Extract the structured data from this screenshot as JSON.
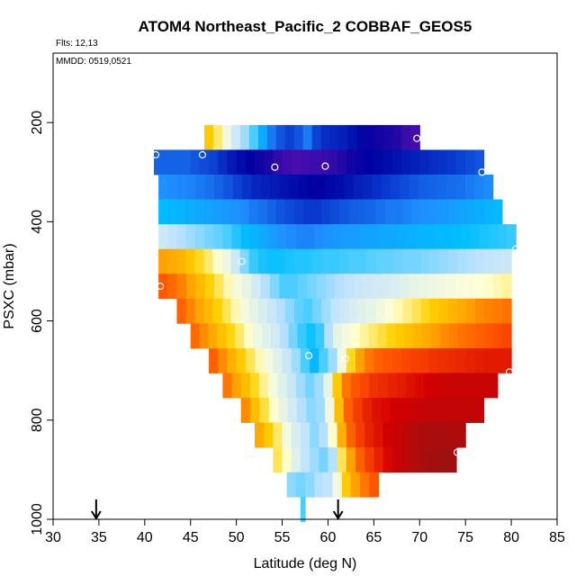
{
  "chart_data": {
    "type": "heatmap",
    "title": "ATOM4 Northeast_Pacific_2 COBBAF_GEOS5",
    "flights_note": "Flts: 12,13",
    "dates_note": "MMDD: 0519,0521",
    "xlabel": "Latitude (deg N)",
    "ylabel": "PSXC (mbar)",
    "xlim": [
      30,
      85
    ],
    "ylim": [
      1000,
      0
    ],
    "x_ticks": [
      "30",
      "35",
      "40",
      "45",
      "50",
      "55",
      "60",
      "65",
      "70",
      "75",
      "80",
      "85"
    ],
    "x_tick_values": [
      30,
      35,
      40,
      45,
      50,
      55,
      60,
      65,
      70,
      75,
      80,
      85
    ],
    "y_ticks": [
      "1000",
      "800",
      "600",
      "400",
      "200"
    ],
    "y_tick_values": [
      1000,
      800,
      600,
      400,
      200
    ],
    "grid": false,
    "colormap": [
      "#5010b0",
      "#0000a0",
      "#0a3ad0",
      "#1f8fff",
      "#00bfff",
      "#bfe2ff",
      "#ffffd6",
      "#ffd200",
      "#ffa000",
      "#ff5000",
      "#d40000",
      "#a01010"
    ],
    "value_range": [
      -1,
      1
    ],
    "rows": [
      {
        "p": 230,
        "x_start": 46.5,
        "x_end": 70,
        "values": [
          0.3,
          0.18,
          0.05,
          -0.05,
          -0.12,
          -0.2,
          -0.35,
          -0.5,
          -0.58,
          -0.62,
          -0.58,
          -0.5,
          -0.62,
          -0.68,
          -0.7,
          -0.72,
          -0.76,
          -0.8,
          -0.84,
          -0.86,
          -0.88,
          -0.9,
          -0.95,
          -0.97
        ]
      },
      {
        "p": 280,
        "x_start": 41,
        "x_end": 77,
        "values": [
          -0.55,
          -0.55,
          -0.55,
          -0.55,
          -0.58,
          -0.6,
          -0.62,
          -0.68,
          -0.74,
          -0.78,
          -0.82,
          -0.85,
          -0.88,
          -0.93,
          -0.96,
          -0.98,
          -0.97,
          -0.96,
          -0.95,
          -0.93,
          -0.9,
          -0.86,
          -0.84,
          -0.82,
          -0.8,
          -0.78,
          -0.76,
          -0.74,
          -0.72,
          -0.7,
          -0.68,
          -0.66,
          -0.64,
          -0.62,
          -0.6,
          -0.58
        ]
      },
      {
        "p": 330,
        "x_start": 41.5,
        "x_end": 78,
        "values": [
          -0.45,
          -0.46,
          -0.47,
          -0.48,
          -0.5,
          -0.52,
          -0.55,
          -0.58,
          -0.62,
          -0.66,
          -0.7,
          -0.72,
          -0.74,
          -0.76,
          -0.78,
          -0.8,
          -0.82,
          -0.82,
          -0.8,
          -0.78,
          -0.75,
          -0.72,
          -0.7,
          -0.67,
          -0.64,
          -0.62,
          -0.6,
          -0.58,
          -0.56,
          -0.55,
          -0.54,
          -0.53,
          -0.52,
          -0.5,
          -0.48,
          -0.46
        ]
      },
      {
        "p": 380,
        "x_start": 41.5,
        "x_end": 79,
        "values": [
          -0.28,
          -0.3,
          -0.32,
          -0.34,
          -0.36,
          -0.38,
          -0.4,
          -0.42,
          -0.44,
          -0.46,
          -0.5,
          -0.52,
          -0.55,
          -0.58,
          -0.6,
          -0.62,
          -0.64,
          -0.64,
          -0.62,
          -0.6,
          -0.58,
          -0.56,
          -0.55,
          -0.54,
          -0.52,
          -0.5,
          -0.5,
          -0.48,
          -0.46,
          -0.45,
          -0.44,
          -0.42,
          -0.4,
          -0.38,
          -0.36,
          -0.34,
          -0.32,
          -0.3
        ]
      },
      {
        "p": 430,
        "x_start": 41.5,
        "x_end": 80.5,
        "values": [
          -0.05,
          -0.08,
          -0.1,
          -0.12,
          -0.14,
          -0.16,
          -0.18,
          -0.2,
          -0.24,
          -0.28,
          -0.32,
          -0.36,
          -0.4,
          -0.44,
          -0.46,
          -0.48,
          -0.48,
          -0.46,
          -0.44,
          -0.42,
          -0.4,
          -0.4,
          -0.38,
          -0.38,
          -0.36,
          -0.36,
          -0.34,
          -0.33,
          -0.32,
          -0.31,
          -0.3,
          -0.29,
          -0.28,
          -0.27,
          -0.26,
          -0.25,
          -0.24,
          -0.23,
          -0.22
        ]
      },
      {
        "p": 480,
        "x_start": 41.5,
        "x_end": 80,
        "values": [
          0.45,
          0.42,
          0.38,
          0.32,
          0.25,
          0.18,
          0.1,
          0.04,
          -0.05,
          -0.15,
          -0.22,
          -0.25,
          -0.26,
          -0.26,
          -0.25,
          -0.24,
          -0.24,
          -0.23,
          -0.22,
          -0.22,
          -0.21,
          -0.2,
          -0.2,
          -0.19,
          -0.18,
          -0.18,
          -0.17,
          -0.16,
          -0.16,
          -0.15,
          -0.14,
          -0.13,
          -0.12,
          -0.11,
          -0.1,
          -0.09,
          -0.08,
          -0.07,
          -0.06
        ]
      },
      {
        "p": 530,
        "x_start": 41.5,
        "x_end": 80,
        "values": [
          0.62,
          0.58,
          0.52,
          0.44,
          0.36,
          0.28,
          0.2,
          0.12,
          0.06,
          0.02,
          -0.04,
          -0.1,
          -0.15,
          -0.2,
          -0.2,
          -0.18,
          -0.16,
          -0.14,
          -0.12,
          -0.1,
          -0.08,
          -0.06,
          -0.05,
          -0.04,
          -0.03,
          -0.02,
          0,
          0.02,
          0.03,
          0.04,
          0.05,
          0.06,
          0.07,
          0.08,
          0.09,
          0.1,
          0.12,
          0.14
        ]
      },
      {
        "p": 580,
        "x_start": 43.5,
        "x_end": 80,
        "values": [
          0.6,
          0.52,
          0.44,
          0.36,
          0.28,
          0.2,
          0.12,
          0.06,
          0.02,
          -0.02,
          -0.06,
          -0.1,
          -0.14,
          -0.18,
          -0.2,
          -0.16,
          -0.12,
          -0.08,
          -0.05,
          -0.02,
          0,
          0.02,
          0.05,
          0.08,
          0.12,
          0.16,
          0.2,
          0.25,
          0.3,
          0.34,
          0.38,
          0.42,
          0.46,
          0.5,
          0.52,
          0.54,
          0.56
        ]
      },
      {
        "p": 630,
        "x_start": 45,
        "x_end": 80,
        "values": [
          0.58,
          0.5,
          0.42,
          0.34,
          0.26,
          0.18,
          0.1,
          0.04,
          0,
          -0.04,
          -0.1,
          -0.16,
          -0.22,
          -0.26,
          -0.22,
          -0.1,
          0.02,
          0.06,
          0.1,
          0.14,
          0.18,
          0.22,
          0.26,
          0.3,
          0.34,
          0.38,
          0.42,
          0.46,
          0.5,
          0.53,
          0.56,
          0.58,
          0.6,
          0.62,
          0.64,
          0.66
        ]
      },
      {
        "p": 680,
        "x_start": 47,
        "x_end": 80,
        "values": [
          0.6,
          0.5,
          0.4,
          0.3,
          0.2,
          0.12,
          0.06,
          0,
          -0.06,
          -0.12,
          -0.2,
          -0.3,
          -0.2,
          -0.12,
          0.05,
          0.25,
          0.45,
          0.55,
          0.6,
          0.62,
          0.64,
          0.66,
          0.67,
          0.68,
          0.7,
          0.71,
          0.72,
          0.73,
          0.74,
          0.75,
          0.76,
          0.76,
          0.76
        ]
      },
      {
        "p": 730,
        "x_start": 48.5,
        "x_end": 78.5,
        "values": [
          0.55,
          0.45,
          0.35,
          0.25,
          0.15,
          0.06,
          0,
          -0.06,
          -0.12,
          -0.16,
          -0.12,
          0.02,
          0.3,
          0.55,
          0.62,
          0.66,
          0.7,
          0.72,
          0.74,
          0.76,
          0.78,
          0.8,
          0.82,
          0.84,
          0.85,
          0.86,
          0.86,
          0.86,
          0.86,
          0.86
        ]
      },
      {
        "p": 780,
        "x_start": 50.5,
        "x_end": 77,
        "values": [
          0.5,
          0.35,
          0.22,
          0.1,
          0.02,
          -0.04,
          -0.1,
          -0.14,
          -0.12,
          0.05,
          0.35,
          0.6,
          0.68,
          0.74,
          0.78,
          0.8,
          0.82,
          0.84,
          0.86,
          0.87,
          0.88,
          0.88,
          0.88,
          0.88,
          0.88,
          0.88
        ]
      },
      {
        "p": 830,
        "x_start": 52,
        "x_end": 75,
        "values": [
          0.42,
          0.3,
          0.18,
          0.06,
          -0.02,
          -0.08,
          -0.14,
          -0.1,
          0.1,
          0.4,
          0.6,
          0.68,
          0.74,
          0.78,
          0.82,
          0.86,
          0.9,
          0.94,
          0.96,
          0.97,
          0.97,
          0.96,
          0.95
        ]
      },
      {
        "p": 880,
        "x_start": 54,
        "x_end": 74,
        "values": [
          0.2,
          0.1,
          0,
          -0.08,
          -0.12,
          -0.16,
          -0.1,
          0.2,
          0.45,
          0.6,
          0.68,
          0.74,
          0.8,
          0.86,
          0.9,
          0.94,
          0.97,
          0.99,
          1.0,
          1.0
        ]
      },
      {
        "p": 930,
        "x_start": 55.5,
        "x_end": 65.5,
        "values": [
          -0.14,
          -0.16,
          -0.14,
          -0.1,
          -0.08,
          0.05,
          0.3,
          0.45,
          0.55,
          0.62
        ]
      },
      {
        "p": 980,
        "x_start": 57,
        "x_end": 57.5,
        "values": [
          -0.2
        ]
      }
    ],
    "markers": [
      {
        "x": 69.7,
        "y": 232
      },
      {
        "x": 41.2,
        "y": 265
      },
      {
        "x": 46.3,
        "y": 265
      },
      {
        "x": 54.2,
        "y": 290
      },
      {
        "x": 59.7,
        "y": 288
      },
      {
        "x": 76.8,
        "y": 300
      },
      {
        "x": 80.5,
        "y": 455
      },
      {
        "x": 50.6,
        "y": 480
      },
      {
        "x": 41.7,
        "y": 530
      },
      {
        "x": 57.9,
        "y": 670
      },
      {
        "x": 61.9,
        "y": 676
      },
      {
        "x": 79.8,
        "y": 703
      },
      {
        "x": 74.1,
        "y": 865
      }
    ],
    "arrows": [
      {
        "x": 34.7
      },
      {
        "x": 61.1
      }
    ]
  }
}
